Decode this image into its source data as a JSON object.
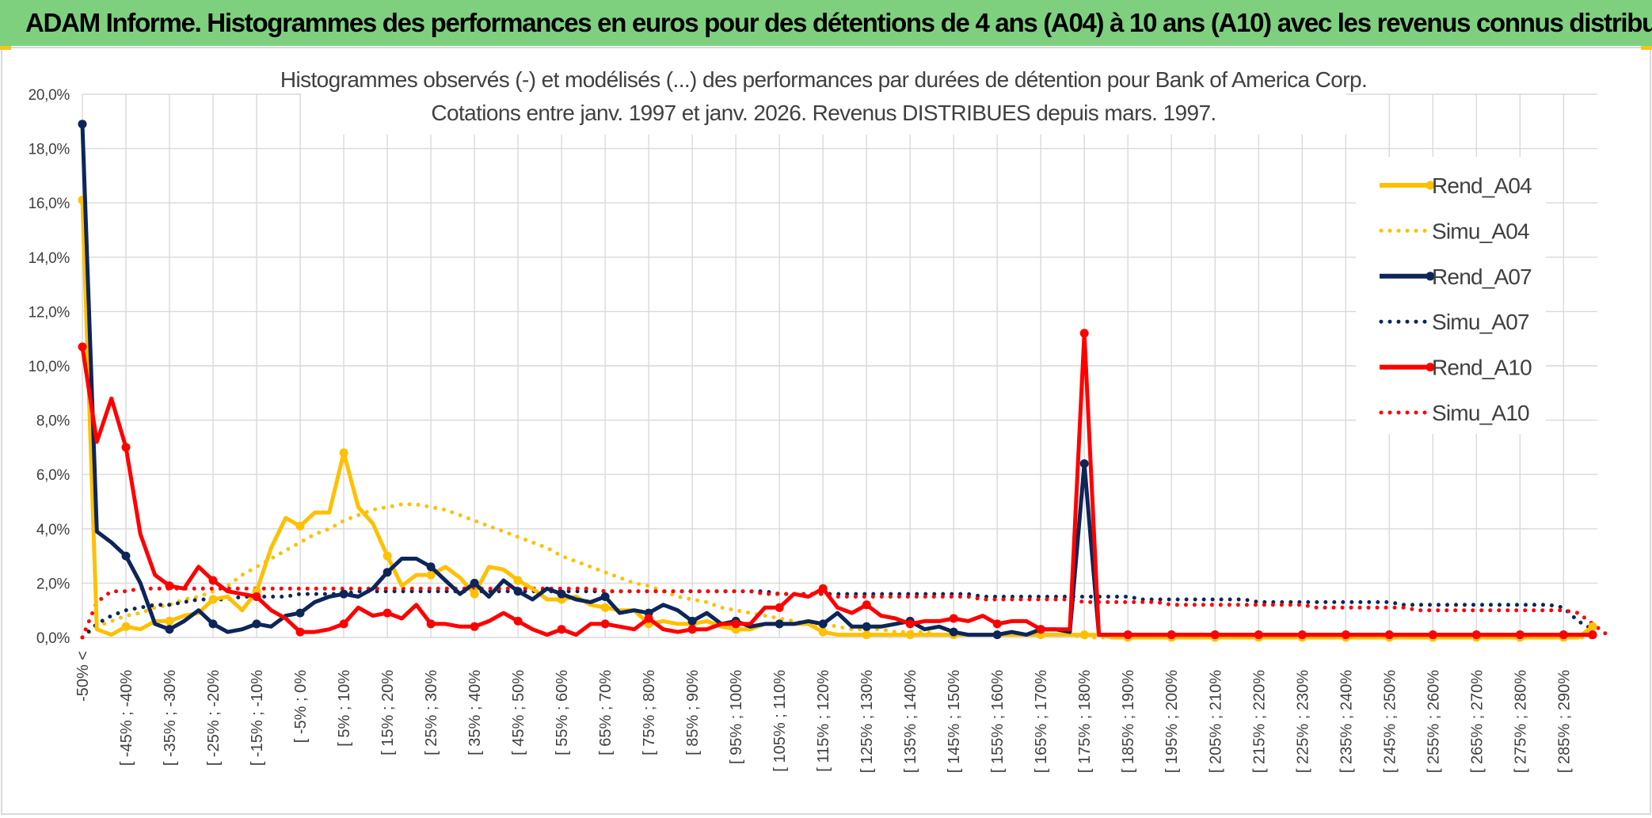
{
  "banner": {
    "title": "ADAM Informe. Histogrammes des performances en euros pour des détentions de 4 ans (A04) à 10 ans (A10) avec les revenus connus distribués",
    "color": "#7ed07e"
  },
  "chart_data": {
    "type": "line",
    "title": "Histogrammes observés (-) et modélisés (...) des performances par durées de détention pour Bank of America Corp.",
    "subtitle": "Cotations entre janv. 1997 et janv. 2026. Revenus DISTRIBUES depuis mars. 1997.",
    "xlabel": "",
    "ylabel": "",
    "ylim": [
      0,
      20
    ],
    "y_ticks": [
      "0,0%",
      "2,0%",
      "4,0%",
      "6,0%",
      "8,0%",
      "10,0%",
      "12,0%",
      "14,0%",
      "16,0%",
      "18,0%",
      "20,0%"
    ],
    "grid": true,
    "legend_position": "right",
    "x_labels": [
      "-50% <",
      "[ -45% ; -40%",
      "[ -35% ; -30%",
      "[ -25% ; -20%",
      "[ -15% ; -10%",
      "[ -5% ; 0%",
      "[ 5% ; 10%",
      "[ 15% ; 20%",
      "[ 25% ; 30%",
      "[ 35% ; 40%",
      "[ 45% ; 50%",
      "[ 55% ; 60%",
      "[ 65% ; 70%",
      "[ 75% ; 80%",
      "[ 85% ; 90%",
      "[ 95% ; 100%",
      "[ 105% ; 110%",
      "[ 115% ; 120%",
      "[ 125% ; 130%",
      "[ 135% ; 140%",
      "[ 145% ; 150%",
      "[ 155% ; 160%",
      "[ 165% ; 170%",
      "[ 175% ; 180%",
      "[ 185% ; 190%",
      "[ 195% ; 200%",
      "[ 205% ; 210%",
      "[ 215% ; 220%",
      "[ 225% ; 230%",
      "[ 235% ; 240%",
      "[ 245% ; 250%",
      "[ 255% ; 260%",
      "[ 265% ; 270%",
      "[ 275% ; 280%",
      "[ 285% ; 290%"
    ],
    "series": [
      {
        "name": "Simu_A04",
        "color": "#ffc000",
        "style": "dotted",
        "values": [
          0.0,
          0.4,
          0.6,
          0.8,
          0.9,
          1.1,
          1.2,
          1.4,
          1.5,
          1.7,
          1.9,
          2.3,
          2.6,
          2.9,
          3.2,
          3.5,
          3.8,
          4.0,
          4.3,
          4.5,
          4.7,
          4.8,
          4.9,
          4.9,
          4.8,
          4.7,
          4.5,
          4.3,
          4.1,
          3.9,
          3.7,
          3.5,
          3.3,
          3.0,
          2.8,
          2.6,
          2.4,
          2.2,
          2.0,
          1.9,
          1.7,
          1.5,
          1.4,
          1.3,
          1.1,
          1.0,
          0.9,
          0.8,
          0.7,
          0.6,
          0.5,
          0.5,
          0.4,
          0.3,
          0.3,
          0.3,
          0.2,
          0.2,
          0.2,
          0.1,
          0.1,
          0.1,
          0.1,
          0.1,
          0.1,
          0.1,
          0.1,
          0.1,
          0.1,
          0.0,
          0.0,
          0.0,
          0.0,
          0.0,
          0.0,
          0.0,
          0.0,
          0.0,
          0.0,
          0.0,
          0.0,
          0.0,
          0.0,
          0.0,
          0.0,
          0.0,
          0.0,
          0.0,
          0.0,
          0.0,
          0.0,
          0.0,
          0.0,
          0.0,
          0.0,
          0.0,
          0.0,
          0.0,
          0.0,
          0.0,
          0.0,
          0.0,
          0.0,
          0.0,
          0.0
        ]
      },
      {
        "name": "Simu_A07",
        "color": "#0d2659",
        "style": "dotted",
        "values": [
          0.0,
          0.5,
          0.8,
          1.0,
          1.1,
          1.2,
          1.2,
          1.3,
          1.4,
          1.4,
          1.4,
          1.5,
          1.5,
          1.5,
          1.5,
          1.6,
          1.6,
          1.6,
          1.6,
          1.7,
          1.7,
          1.7,
          1.7,
          1.7,
          1.7,
          1.7,
          1.7,
          1.7,
          1.7,
          1.7,
          1.7,
          1.7,
          1.7,
          1.7,
          1.7,
          1.7,
          1.7,
          1.7,
          1.7,
          1.7,
          1.7,
          1.7,
          1.7,
          1.7,
          1.7,
          1.7,
          1.7,
          1.7,
          1.6,
          1.6,
          1.6,
          1.6,
          1.6,
          1.6,
          1.6,
          1.6,
          1.6,
          1.6,
          1.6,
          1.6,
          1.6,
          1.6,
          1.5,
          1.5,
          1.5,
          1.5,
          1.5,
          1.5,
          1.5,
          1.5,
          1.5,
          1.5,
          1.5,
          1.4,
          1.4,
          1.4,
          1.4,
          1.4,
          1.4,
          1.4,
          1.4,
          1.3,
          1.3,
          1.3,
          1.3,
          1.3,
          1.3,
          1.3,
          1.3,
          1.3,
          1.3,
          1.2,
          1.2,
          1.2,
          1.2,
          1.2,
          1.2,
          1.2,
          1.2,
          1.2,
          1.2,
          1.2,
          1.1,
          0.6,
          0.3
        ]
      },
      {
        "name": "Simu_A10",
        "color": "#ff0000",
        "style": "dotted",
        "values": [
          0.0,
          1.3,
          1.7,
          1.7,
          1.8,
          1.8,
          1.8,
          1.8,
          1.8,
          1.8,
          1.8,
          1.8,
          1.8,
          1.8,
          1.8,
          1.8,
          1.8,
          1.8,
          1.8,
          1.8,
          1.8,
          1.8,
          1.8,
          1.8,
          1.8,
          1.8,
          1.8,
          1.8,
          1.8,
          1.8,
          1.8,
          1.8,
          1.8,
          1.8,
          1.8,
          1.8,
          1.7,
          1.7,
          1.7,
          1.7,
          1.7,
          1.7,
          1.7,
          1.7,
          1.7,
          1.7,
          1.7,
          1.6,
          1.6,
          1.6,
          1.6,
          1.6,
          1.5,
          1.5,
          1.5,
          1.5,
          1.5,
          1.5,
          1.5,
          1.5,
          1.5,
          1.5,
          1.4,
          1.4,
          1.4,
          1.4,
          1.4,
          1.4,
          1.4,
          1.3,
          1.3,
          1.3,
          1.3,
          1.3,
          1.3,
          1.2,
          1.2,
          1.2,
          1.2,
          1.2,
          1.2,
          1.2,
          1.2,
          1.2,
          1.2,
          1.1,
          1.1,
          1.1,
          1.1,
          1.1,
          1.1,
          1.1,
          1.0,
          1.0,
          1.0,
          1.0,
          1.0,
          1.0,
          1.0,
          1.0,
          1.0,
          1.0,
          1.0,
          0.9,
          0.5,
          0.1
        ]
      },
      {
        "name": "Rend_A04",
        "color": "#ffc000",
        "style": "solid",
        "values": [
          16.1,
          0.3,
          0.1,
          0.4,
          0.3,
          0.6,
          0.6,
          0.8,
          0.9,
          1.4,
          1.5,
          1.0,
          1.7,
          3.3,
          4.4,
          4.1,
          4.6,
          4.6,
          6.8,
          4.8,
          4.2,
          3.0,
          1.9,
          2.3,
          2.3,
          2.6,
          2.2,
          1.6,
          2.6,
          2.5,
          2.1,
          1.8,
          1.4,
          1.4,
          1.5,
          1.2,
          1.1,
          1.0,
          1.0,
          0.5,
          0.6,
          0.5,
          0.5,
          0.6,
          0.4,
          0.3,
          0.3,
          0.5,
          0.5,
          0.5,
          0.5,
          0.2,
          0.1,
          0.1,
          0.1,
          0.1,
          0.1,
          0.1,
          0.1,
          0.1,
          0.1,
          0.1,
          0.1,
          0.1,
          0.1,
          0.1,
          0.1,
          0.1,
          0.1,
          0.1,
          0.1,
          0.0,
          0.0,
          0.0,
          0.0,
          0.0,
          0.0,
          0.0,
          0.0,
          0.0,
          0.0,
          0.0,
          0.0,
          0.0,
          0.0,
          0.0,
          0.0,
          0.0,
          0.0,
          0.0,
          0.0,
          0.0,
          0.0,
          0.0,
          0.0,
          0.0,
          0.0,
          0.0,
          0.0,
          0.0,
          0.0,
          0.0,
          0.0,
          0.0,
          0.4
        ]
      },
      {
        "name": "Rend_A07",
        "color": "#0d2659",
        "style": "solid",
        "values": [
          18.9,
          3.9,
          3.5,
          3.0,
          2.0,
          0.5,
          0.3,
          0.6,
          1.0,
          0.5,
          0.2,
          0.3,
          0.5,
          0.4,
          0.8,
          0.9,
          1.3,
          1.5,
          1.6,
          1.5,
          1.8,
          2.4,
          2.9,
          2.9,
          2.6,
          2.1,
          1.6,
          2.0,
          1.5,
          2.1,
          1.7,
          1.4,
          1.8,
          1.6,
          1.4,
          1.3,
          1.5,
          0.9,
          1.0,
          0.9,
          1.2,
          1.0,
          0.6,
          0.9,
          0.5,
          0.6,
          0.4,
          0.5,
          0.5,
          0.5,
          0.6,
          0.5,
          0.9,
          0.4,
          0.4,
          0.4,
          0.5,
          0.6,
          0.3,
          0.4,
          0.2,
          0.1,
          0.1,
          0.1,
          0.2,
          0.1,
          0.3,
          0.3,
          0.2,
          6.4,
          0.1,
          0.1,
          0.1,
          0.1,
          0.1,
          0.1,
          0.1,
          0.1,
          0.1,
          0.1,
          0.1,
          0.1,
          0.1,
          0.1,
          0.1,
          0.1,
          0.1,
          0.1,
          0.1,
          0.1,
          0.1,
          0.1,
          0.1,
          0.1,
          0.1,
          0.1,
          0.1,
          0.1,
          0.1,
          0.1,
          0.1,
          0.1,
          0.1,
          0.1,
          0.1
        ]
      },
      {
        "name": "Rend_A10",
        "color": "#ff0000",
        "style": "solid",
        "values": [
          10.7,
          7.2,
          8.8,
          7.0,
          3.8,
          2.3,
          1.9,
          1.8,
          2.6,
          2.1,
          1.7,
          1.6,
          1.5,
          1.0,
          0.7,
          0.2,
          0.2,
          0.3,
          0.5,
          1.1,
          0.8,
          0.9,
          0.7,
          1.2,
          0.5,
          0.5,
          0.4,
          0.4,
          0.6,
          0.9,
          0.6,
          0.3,
          0.1,
          0.3,
          0.1,
          0.5,
          0.5,
          0.4,
          0.3,
          0.7,
          0.3,
          0.2,
          0.3,
          0.3,
          0.5,
          0.5,
          0.5,
          1.1,
          1.1,
          1.6,
          1.5,
          1.8,
          1.1,
          0.9,
          1.2,
          0.8,
          0.7,
          0.5,
          0.6,
          0.6,
          0.7,
          0.6,
          0.8,
          0.5,
          0.6,
          0.6,
          0.3,
          0.3,
          0.3,
          11.2,
          0.1,
          0.1,
          0.1,
          0.1,
          0.1,
          0.1,
          0.1,
          0.1,
          0.1,
          0.1,
          0.1,
          0.1,
          0.1,
          0.1,
          0.1,
          0.1,
          0.1,
          0.1,
          0.1,
          0.1,
          0.1,
          0.1,
          0.1,
          0.1,
          0.1,
          0.1,
          0.1,
          0.1,
          0.1,
          0.1,
          0.1,
          0.1,
          0.1,
          0.1,
          0.1
        ]
      }
    ]
  }
}
